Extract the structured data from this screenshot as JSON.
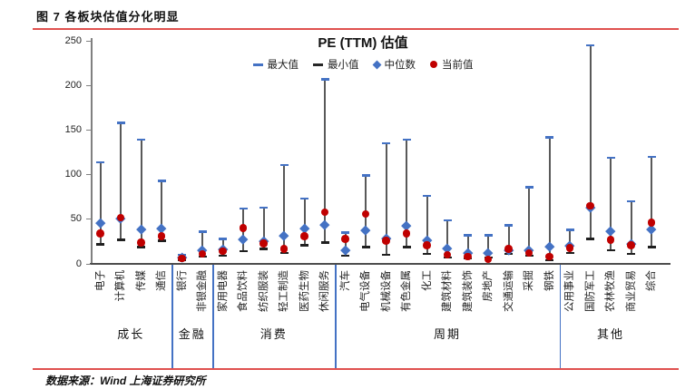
{
  "figure_caption": "图 7 各板块估值分化明显",
  "footer_source": "数据来源：Wind  上海证券研究所",
  "accent_color": "#e0514f",
  "chart_data": {
    "type": "hilo-range",
    "title": "PE (TTM) 估值",
    "ylim": [
      0,
      250
    ],
    "yticks": [
      0,
      50,
      100,
      150,
      200,
      250
    ],
    "grid": false,
    "legend_position": "top-center",
    "legend": [
      {
        "label": "最大值",
        "marker": "dash",
        "color": "#4472C4"
      },
      {
        "label": "最小值",
        "marker": "dash",
        "color": "#262626"
      },
      {
        "label": "中位数",
        "marker": "diamond",
        "color": "#4472C4"
      },
      {
        "label": "当前值",
        "marker": "circle",
        "color": "#C00000"
      }
    ],
    "colors": {
      "range_line": "#595959",
      "max_cap": "#4472C4",
      "min_cap": "#1f1f1f",
      "median": "#4472C4",
      "current": "#C00000",
      "group_separator": "#4472C4"
    },
    "groups": [
      {
        "label": "成长",
        "count": 4
      },
      {
        "label": "金融",
        "count": 2
      },
      {
        "label": "消费",
        "count": 6
      },
      {
        "label": "周期",
        "count": 11
      },
      {
        "label": "其他",
        "count": 5
      }
    ],
    "categories": [
      "电子",
      "计算机",
      "传媒",
      "通信",
      "银行",
      "非银金融",
      "家用电器",
      "食品饮料",
      "纺织服装",
      "轻工制造",
      "医药生物",
      "休闲服务",
      "汽车",
      "电气设备",
      "机械设备",
      "有色金属",
      "化工",
      "建筑材料",
      "建筑装饰",
      "房地产",
      "交通运输",
      "采掘",
      "钢铁",
      "公用事业",
      "国防军工",
      "农林牧渔",
      "商业贸易",
      "综合"
    ],
    "series": [
      {
        "name": "最大值",
        "values": [
          114,
          158,
          139,
          93,
          10,
          36,
          28,
          62,
          63,
          111,
          73,
          207,
          35,
          99,
          135,
          139,
          76,
          49,
          32,
          32,
          43,
          86,
          142,
          38,
          245,
          119,
          70,
          120
        ]
      },
      {
        "name": "最小值",
        "values": [
          22,
          27,
          19,
          26,
          4,
          8,
          9,
          14,
          17,
          12,
          21,
          24,
          9,
          19,
          10,
          19,
          11,
          7,
          6,
          7,
          11,
          9,
          4,
          12,
          28,
          15,
          11,
          19
        ]
      },
      {
        "name": "中位数",
        "values": [
          46,
          51,
          39,
          40,
          7,
          16,
          17,
          28,
          26,
          32,
          40,
          44,
          16,
          38,
          29,
          43,
          27,
          18,
          12,
          12,
          15,
          16,
          20,
          21,
          63,
          37,
          23,
          39
        ]
      },
      {
        "name": "当前值",
        "values": [
          34,
          52,
          24,
          31,
          6,
          11,
          14,
          40,
          23,
          17,
          31,
          58,
          28,
          56,
          26,
          34,
          21,
          10,
          8,
          5,
          17,
          12,
          8,
          18,
          65,
          27,
          21,
          46
        ]
      }
    ]
  }
}
